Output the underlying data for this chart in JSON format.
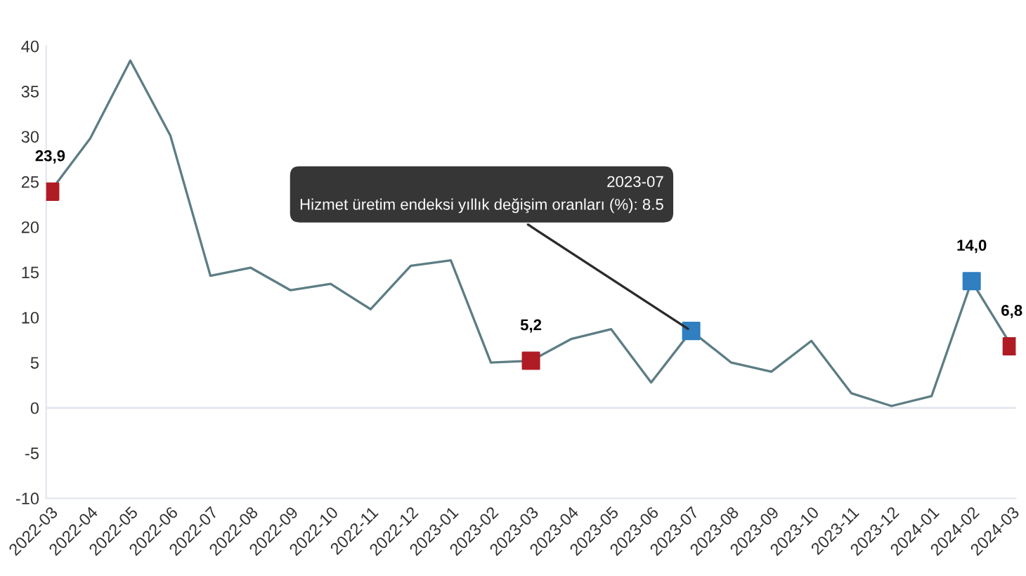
{
  "chart_data": {
    "type": "line",
    "categories": [
      "2022-03",
      "2022-04",
      "2022-05",
      "2022-06",
      "2022-07",
      "2022-08",
      "2022-09",
      "2022-10",
      "2022-11",
      "2022-12",
      "2023-01",
      "2023-02",
      "2023-03",
      "2023-04",
      "2023-05",
      "2023-06",
      "2023-07",
      "2023-08",
      "2023-09",
      "2023-10",
      "2023-11",
      "2023-12",
      "2024-01",
      "2024-02",
      "2024-03"
    ],
    "series": [
      {
        "type": "line",
        "color": "#5d7d84",
        "values": [
          23.9,
          29.8,
          38.4,
          30.1,
          14.6,
          15.5,
          13.0,
          13.7,
          10.9,
          15.7,
          16.3,
          5.0,
          5.2,
          7.6,
          8.7,
          2.8,
          8.5,
          5.0,
          4.0,
          7.4,
          1.6,
          0.2,
          1.3,
          14.0,
          6.8
        ]
      },
      {
        "type": "scatter",
        "marker": "square",
        "values": [
          23.9,
          null,
          null,
          null,
          null,
          null,
          null,
          null,
          null,
          null,
          null,
          null,
          5.2,
          null,
          null,
          null,
          8.5,
          null,
          null,
          null,
          null,
          null,
          null,
          14.0,
          6.8
        ],
        "colors": [
          "#b01c24",
          null,
          null,
          null,
          null,
          null,
          null,
          null,
          null,
          null,
          null,
          null,
          "#b01c24",
          null,
          null,
          null,
          "#2f7fc1",
          null,
          null,
          null,
          null,
          null,
          null,
          "#2f7fc1",
          "#b01c24"
        ],
        "value_labels": [
          "23,9",
          null,
          null,
          null,
          null,
          null,
          null,
          null,
          null,
          null,
          null,
          null,
          "5,2",
          null,
          null,
          null,
          null,
          null,
          null,
          null,
          null,
          null,
          null,
          "14,0",
          "6,8"
        ]
      }
    ],
    "ylim": [
      -10,
      40
    ],
    "yticks": [
      -10,
      -5,
      0,
      5,
      10,
      15,
      20,
      25,
      30,
      35,
      40
    ],
    "ref_lines": [
      {
        "axis": "y",
        "value": 0,
        "color": "#e3e6ee"
      }
    ],
    "annotations": [
      {
        "text": "2023-07\nHizmet üretim endeksi yıllık değişim oranları (%): 8.5",
        "x": "2023-07",
        "y": 8.5
      }
    ]
  }
}
